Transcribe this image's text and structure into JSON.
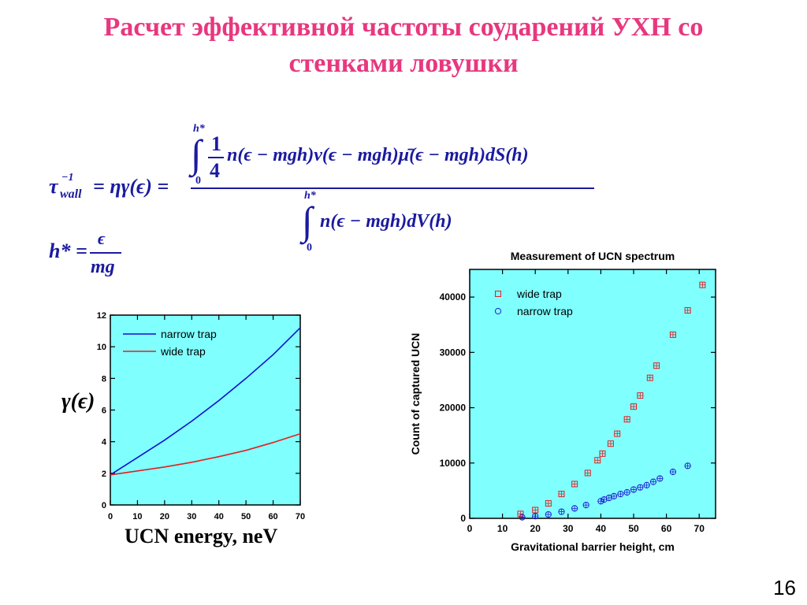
{
  "title_line1": "Расчет эффективной частоты соударений УХН со",
  "title_line2": "стенками ловушки",
  "page_number": "16",
  "formulas": {
    "tau_lhs": "τ",
    "tau_sup": "−1",
    "tau_sub": "wall",
    "tau_rhs": "= ηγ(ϵ) =",
    "upper_limit": "h*",
    "lower_limit": "0",
    "frac_num": "1",
    "frac_den": "4",
    "numerator_integrand": "n(ϵ − mgh)v(ϵ − mgh)μ̄(ϵ − mgh)dS(h)",
    "denominator_integrand": "n(ϵ − mgh)dV(h)",
    "hstar_lhs": "h* =",
    "hstar_num": "ϵ",
    "hstar_den": "mg"
  },
  "gamma_label": "γ(ϵ)",
  "left_xlabel": "UCN energy, neV",
  "chart_data": [
    {
      "type": "line",
      "title": "",
      "xlabel": "UCN energy, neV",
      "ylabel": "γ(ϵ)",
      "xlim": [
        0,
        70
      ],
      "ylim": [
        0,
        12
      ],
      "xticks": [
        0,
        10,
        20,
        30,
        40,
        50,
        60,
        70
      ],
      "yticks": [
        0,
        2,
        4,
        6,
        8,
        10,
        12
      ],
      "legend_position": "top-left",
      "background": "#80ffff",
      "series": [
        {
          "name": "narrow trap",
          "color": "#1010d0",
          "x": [
            0,
            10,
            20,
            30,
            40,
            50,
            60,
            70
          ],
          "y": [
            1.9,
            3.0,
            4.1,
            5.3,
            6.6,
            8.0,
            9.5,
            11.2
          ]
        },
        {
          "name": "wide trap",
          "color": "#e02020",
          "x": [
            0,
            10,
            20,
            30,
            40,
            50,
            60,
            70
          ],
          "y": [
            1.9,
            2.15,
            2.4,
            2.7,
            3.05,
            3.45,
            3.95,
            4.5
          ]
        }
      ]
    },
    {
      "type": "scatter",
      "title": "Measurement of UCN spectrum",
      "xlabel": "Gravitational barrier height, cm",
      "ylabel": "Count of captured UCN",
      "xlim": [
        0,
        75
      ],
      "ylim": [
        0,
        45000
      ],
      "xticks": [
        0,
        10,
        20,
        30,
        40,
        50,
        60,
        70
      ],
      "yticks": [
        0,
        10000,
        20000,
        30000,
        40000
      ],
      "legend_position": "top-left",
      "background": "#80ffff",
      "series": [
        {
          "name": "wide trap",
          "color": "#e02020",
          "marker": "square",
          "x": [
            15.5,
            20,
            24,
            28,
            32,
            36,
            39,
            40.5,
            43,
            45,
            48,
            50,
            52,
            55,
            57,
            62,
            66.5,
            71
          ],
          "y": [
            800,
            1500,
            2700,
            4400,
            6200,
            8200,
            10500,
            11700,
            13500,
            15300,
            17900,
            20200,
            22200,
            25400,
            27600,
            33200,
            37600,
            42200
          ]
        },
        {
          "name": "narrow trap",
          "color": "#2020d0",
          "marker": "circle",
          "x": [
            16,
            20,
            24,
            28,
            32,
            35.5,
            40,
            41,
            42.5,
            44,
            46,
            48,
            50,
            52,
            54,
            56,
            58,
            62,
            66.5
          ],
          "y": [
            200,
            400,
            700,
            1200,
            1800,
            2400,
            3100,
            3400,
            3700,
            4000,
            4400,
            4700,
            5200,
            5600,
            6000,
            6600,
            7200,
            8400,
            9500
          ]
        }
      ]
    }
  ]
}
